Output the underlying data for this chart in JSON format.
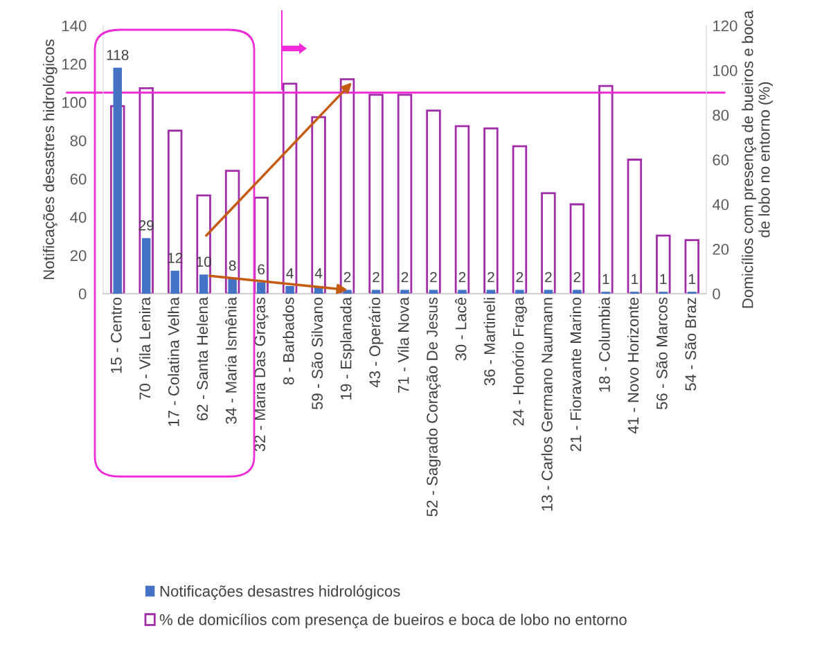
{
  "chart_data": {
    "type": "bar",
    "ylabel": "Notificações desastres hidrológicos",
    "y2label": "Domicílios com presença de bueiros e boca de lobo no entorno (%)",
    "categories": [
      "15 - Centro",
      "70 - Vila Lenira",
      "17 - Colatina Velha",
      "62 - Santa Helena",
      "34 - Maria Ismênia",
      "32 - Maria Das Graças",
      "8 - Barbados",
      "59 - São Silvano",
      "19 - Esplanada",
      "43 - Operário",
      "71 - Vila Nova",
      "52 - Sagrado Coração De Jesus",
      "30 - Lacê",
      "36 - Martineli",
      "24 - Honório Fraga",
      "13 - Carlos Germano Naumann",
      "21 - Fioravante Marino",
      "18 - Columbia",
      "41 - Novo Horizonte",
      "56 - São Marcos",
      "54 - São Braz"
    ],
    "series": [
      {
        "name": "Notificações desastres hidrológicos",
        "color": "#4472c4",
        "data_labels": true,
        "values": [
          118,
          29,
          12,
          10,
          8,
          6,
          4,
          4,
          2,
          2,
          2,
          2,
          2,
          2,
          2,
          2,
          2,
          1,
          1,
          1,
          1
        ]
      },
      {
        "name": "% de domicílios com presença de bueiros e boca de lobo no entorno",
        "color": "#a12ca8",
        "axis": "y2",
        "values": [
          84,
          92,
          73,
          44,
          55,
          43,
          94,
          79,
          96,
          89,
          89,
          82,
          75,
          74,
          66,
          45,
          40,
          93,
          60,
          26,
          24
        ]
      }
    ],
    "ylim": [
      0,
      140
    ],
    "yticks": [
      0,
      20,
      40,
      60,
      80,
      100,
      120,
      140
    ],
    "y2lim": [
      0,
      120
    ],
    "y2ticks": [
      0,
      20,
      40,
      60,
      80,
      100,
      120
    ],
    "ref_lines": [
      {
        "axis": "y2",
        "value": 90,
        "color": "#ee2bd6"
      }
    ],
    "grid": false,
    "legend": "bottom"
  }
}
